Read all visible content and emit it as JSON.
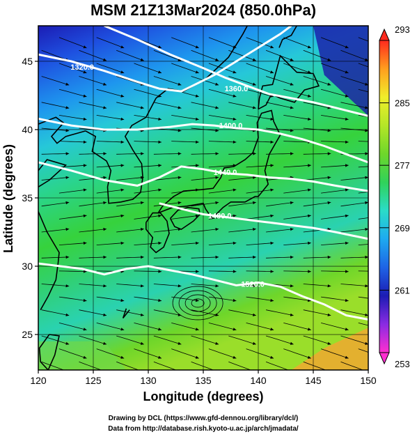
{
  "figure": {
    "title": "MSM 21Z13Mar2024 (850.0hPa)",
    "xlabel": "Longitude (degrees)",
    "ylabel": "Latitude  (degrees)",
    "credit_line1": "Drawing by DCL (https://www.gfd-dennou.org/library/dcl/)",
    "credit_line2": "Data from http://database.rish.kyoto-u.ac.jp/arch/jmadata/"
  },
  "chart_data": {
    "type": "heatmap",
    "description_of_field": "temperature shading with streamlines and geopotential height contours",
    "x_range": [
      120,
      150
    ],
    "y_range": [
      22.4,
      47.6
    ],
    "x_ticks": [
      "120",
      "125",
      "130",
      "135",
      "140",
      "145",
      "150"
    ],
    "y_ticks": [
      "25",
      "30",
      "35",
      "40",
      "45"
    ],
    "colorbar": {
      "min": 253,
      "max": 293,
      "tick_labels": [
        "293",
        "285",
        "277",
        "269",
        "261",
        "253"
      ],
      "colors": [
        "#ff2fd0",
        "#8a2be2",
        "#1c1cb4",
        "#1e64e6",
        "#1eaaf0",
        "#2adcc8",
        "#30d25a",
        "#6ed62a",
        "#b4e628",
        "#f0ee2a",
        "#ff9e1e",
        "#ff2a1e"
      ]
    },
    "contours": [
      {
        "label": "1320.0"
      },
      {
        "label": "1360.0"
      },
      {
        "label": "1400.0"
      },
      {
        "label": "1440.0"
      },
      {
        "label": "1480.0"
      },
      {
        "label": "1520.0"
      }
    ],
    "grid": true
  }
}
